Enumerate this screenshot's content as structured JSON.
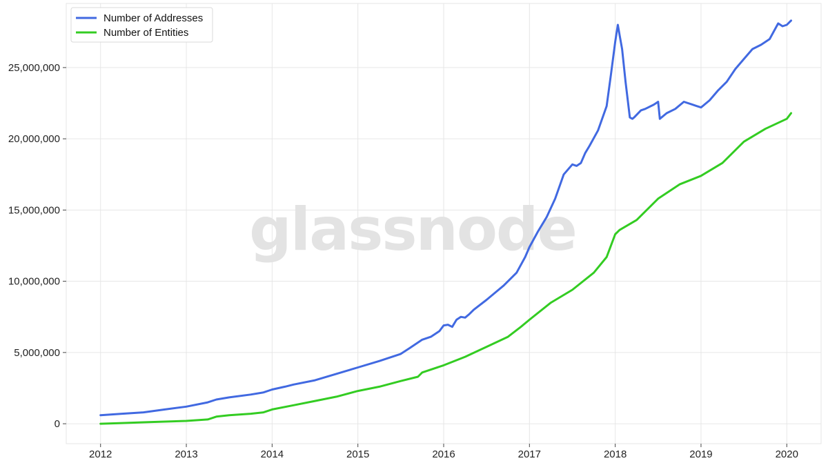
{
  "watermark": "glassnode",
  "chart_data": {
    "type": "line",
    "title": "",
    "xlabel": "",
    "ylabel": "",
    "xlim": [
      2011.6,
      2020.4
    ],
    "ylim": [
      -1400000,
      29500000
    ],
    "grid": true,
    "legend_position": "top-left",
    "x_ticks": [
      2012,
      2013,
      2014,
      2015,
      2016,
      2017,
      2018,
      2019,
      2020
    ],
    "x_tick_labels": [
      "2012",
      "2013",
      "2014",
      "2015",
      "2016",
      "2017",
      "2018",
      "2019",
      "2020"
    ],
    "y_ticks": [
      0,
      5000000,
      10000000,
      15000000,
      20000000,
      25000000
    ],
    "y_tick_labels": [
      "0",
      "5,000,000",
      "10,000,000",
      "15,000,000",
      "20,000,000",
      "25,000,000"
    ],
    "series": [
      {
        "name": "Number of Addresses",
        "color": "#4169e1",
        "x": [
          2012.0,
          2012.25,
          2012.5,
          2012.75,
          2013.0,
          2013.25,
          2013.35,
          2013.5,
          2013.75,
          2013.9,
          2014.0,
          2014.15,
          2014.25,
          2014.5,
          2014.75,
          2015.0,
          2015.25,
          2015.5,
          2015.6,
          2015.75,
          2015.85,
          2015.95,
          2016.0,
          2016.05,
          2016.1,
          2016.15,
          2016.2,
          2016.25,
          2016.3,
          2016.35,
          2016.5,
          2016.6,
          2016.7,
          2016.85,
          2016.95,
          2017.0,
          2017.1,
          2017.2,
          2017.3,
          2017.4,
          2017.5,
          2017.55,
          2017.6,
          2017.65,
          2017.7,
          2017.8,
          2017.9,
          2017.95,
          2018.0,
          2018.03,
          2018.05,
          2018.08,
          2018.12,
          2018.17,
          2018.2,
          2018.22,
          2018.3,
          2018.35,
          2018.45,
          2018.5,
          2018.52,
          2018.6,
          2018.7,
          2018.8,
          2018.9,
          2018.95,
          2019.0,
          2019.1,
          2019.2,
          2019.3,
          2019.4,
          2019.5,
          2019.6,
          2019.7,
          2019.8,
          2019.9,
          2019.95,
          2020.0,
          2020.05
        ],
        "values": [
          600000,
          700000,
          800000,
          1000000,
          1200000,
          1500000,
          1700000,
          1850000,
          2050000,
          2200000,
          2400000,
          2600000,
          2750000,
          3050000,
          3500000,
          3950000,
          4400000,
          4900000,
          5300000,
          5900000,
          6100000,
          6500000,
          6900000,
          6950000,
          6800000,
          7300000,
          7500000,
          7450000,
          7700000,
          8000000,
          8700000,
          9200000,
          9700000,
          10600000,
          11700000,
          12400000,
          13500000,
          14500000,
          15800000,
          17500000,
          18200000,
          18100000,
          18300000,
          19000000,
          19500000,
          20600000,
          22300000,
          24500000,
          26800000,
          28000000,
          27300000,
          26300000,
          24000000,
          21500000,
          21400000,
          21500000,
          22000000,
          22100000,
          22400000,
          22600000,
          21400000,
          21800000,
          22100000,
          22600000,
          22400000,
          22300000,
          22200000,
          22700000,
          23400000,
          24000000,
          24900000,
          25600000,
          26300000,
          26600000,
          27000000,
          28100000,
          27900000,
          28000000,
          28300000
        ]
      },
      {
        "name": "Number of Entities",
        "color": "#33cc22",
        "x": [
          2012.0,
          2012.25,
          2012.5,
          2012.75,
          2013.0,
          2013.25,
          2013.35,
          2013.5,
          2013.75,
          2013.9,
          2014.0,
          2014.25,
          2014.5,
          2014.75,
          2015.0,
          2015.25,
          2015.5,
          2015.7,
          2015.75,
          2016.0,
          2016.25,
          2016.5,
          2016.75,
          2016.9,
          2017.0,
          2017.25,
          2017.5,
          2017.75,
          2017.9,
          2018.0,
          2018.05,
          2018.25,
          2018.5,
          2018.75,
          2019.0,
          2019.25,
          2019.5,
          2019.75,
          2020.0,
          2020.05
        ],
        "values": [
          0,
          50000,
          100000,
          150000,
          200000,
          300000,
          500000,
          600000,
          700000,
          800000,
          1000000,
          1300000,
          1600000,
          1900000,
          2300000,
          2600000,
          3000000,
          3300000,
          3600000,
          4100000,
          4700000,
          5400000,
          6100000,
          6800000,
          7300000,
          8500000,
          9400000,
          10600000,
          11700000,
          13300000,
          13600000,
          14300000,
          15800000,
          16800000,
          17400000,
          18300000,
          19800000,
          20700000,
          21400000,
          21800000
        ]
      }
    ]
  }
}
